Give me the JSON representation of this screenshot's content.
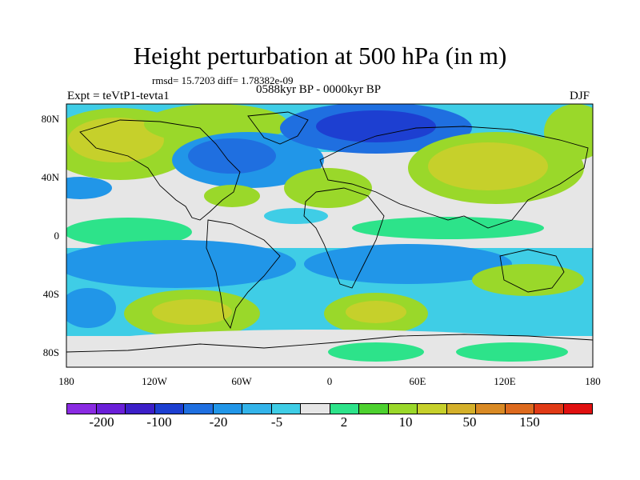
{
  "title": "Height perturbation at 500 hPa (in m)",
  "stats": "rmsd= 15.7203 diff= 1.78382e-09",
  "subtitle": "0588kyr BP - 0000kyr BP",
  "experiment": "Expt = teVtP1-tevta1",
  "season": "DJF",
  "x_ticks": [
    "180",
    "120W",
    "60W",
    "0",
    "60E",
    "120E",
    "180"
  ],
  "y_ticks": [
    "80N",
    "40N",
    "0",
    "40S",
    "80S"
  ],
  "colorbar": {
    "colors": [
      "#8a2be2",
      "#6a1fd8",
      "#3c1fc8",
      "#1d3fd1",
      "#1f6fe0",
      "#2196e8",
      "#33b4ea",
      "#3fcde6",
      "#e6e6e6",
      "#2de38a",
      "#4dd12f",
      "#9ad82a",
      "#c6d02b",
      "#d4b02a",
      "#d98a24",
      "#dd6a1e",
      "#e03a16",
      "#e01010"
    ],
    "labels": [
      "-200",
      "-100",
      "-20",
      "-5",
      "2",
      "10",
      "50",
      "150"
    ]
  },
  "map": {
    "colors": {
      "neutral": "#e6e6e6",
      "lightblue": "#3fcde6",
      "midblue": "#2196e8",
      "blue": "#1f6fe0",
      "darkblue": "#1d3fd1",
      "green": "#2de38a",
      "lgreen": "#4dd12f",
      "ygreen": "#9ad82a",
      "yellow": "#c6d02b",
      "orange": "#d4b02a"
    }
  }
}
